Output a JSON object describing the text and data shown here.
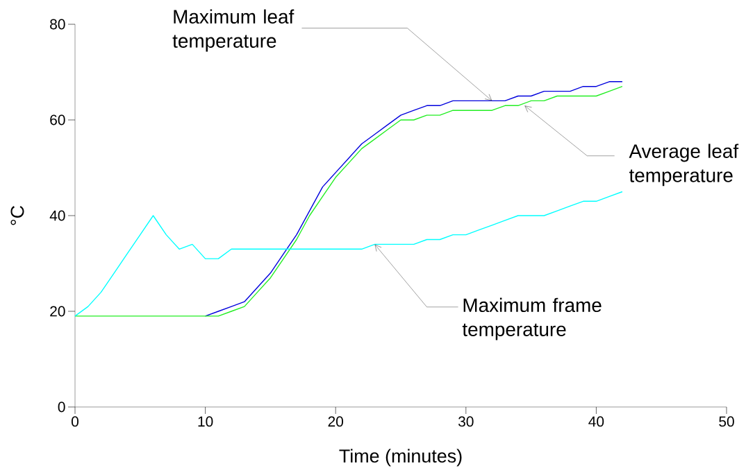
{
  "chart_data": {
    "type": "line",
    "xlabel": "Time (minutes)",
    "ylabel": "°C",
    "x": [
      0,
      1,
      2,
      3,
      4,
      5,
      6,
      7,
      8,
      9,
      10,
      11,
      12,
      13,
      14,
      15,
      16,
      17,
      18,
      19,
      20,
      21,
      22,
      23,
      24,
      25,
      26,
      27,
      28,
      29,
      30,
      31,
      32,
      33,
      34,
      35,
      36,
      37,
      38,
      39,
      40,
      41,
      42
    ],
    "series": [
      {
        "color": "#0000dd",
        "values": [
          null,
          null,
          null,
          null,
          null,
          null,
          null,
          null,
          null,
          null,
          19,
          20,
          21,
          22,
          25,
          28,
          32,
          36,
          41,
          46,
          49,
          52,
          55,
          57,
          59,
          61,
          62,
          63,
          63,
          64,
          64,
          64,
          64,
          64,
          65,
          65,
          66,
          66,
          66,
          67,
          67,
          68,
          68
        ]
      },
      {
        "color": "#22ee22",
        "values": [
          19,
          19,
          19,
          19,
          19,
          19,
          19,
          19,
          19,
          19,
          19,
          19,
          20,
          21,
          24,
          27,
          31,
          35,
          40,
          44,
          48,
          51,
          54,
          56,
          58,
          60,
          60,
          61,
          61,
          62,
          62,
          62,
          62,
          63,
          63,
          64,
          64,
          65,
          65,
          65,
          65,
          66,
          67
        ]
      },
      {
        "color": "#00ffff",
        "values": [
          19,
          21,
          24,
          28,
          32,
          36,
          40,
          36,
          33,
          34,
          31,
          31,
          33,
          33,
          33,
          33,
          33,
          33,
          33,
          33,
          33,
          33,
          33,
          34,
          34,
          34,
          34,
          35,
          35,
          36,
          36,
          37,
          38,
          39,
          40,
          40,
          40,
          41,
          42,
          43,
          43,
          44,
          45
        ]
      }
    ],
    "xlim": [
      0,
      50
    ],
    "ylim": [
      0,
      80
    ],
    "xticks": [
      0,
      10,
      20,
      30,
      40,
      50
    ],
    "yticks": [
      0,
      20,
      40,
      60,
      80
    ],
    "grid": false,
    "legend": false,
    "marker": "none",
    "line_style": "solid",
    "annotations": [
      {
        "text": "Maximum leaf temperature",
        "x": 32,
        "y": 64
      },
      {
        "text": "Average leaf temperature",
        "x": 34.5,
        "y": 63
      },
      {
        "text": "Maximum frame temperature",
        "x": 23,
        "y": 34
      }
    ]
  }
}
